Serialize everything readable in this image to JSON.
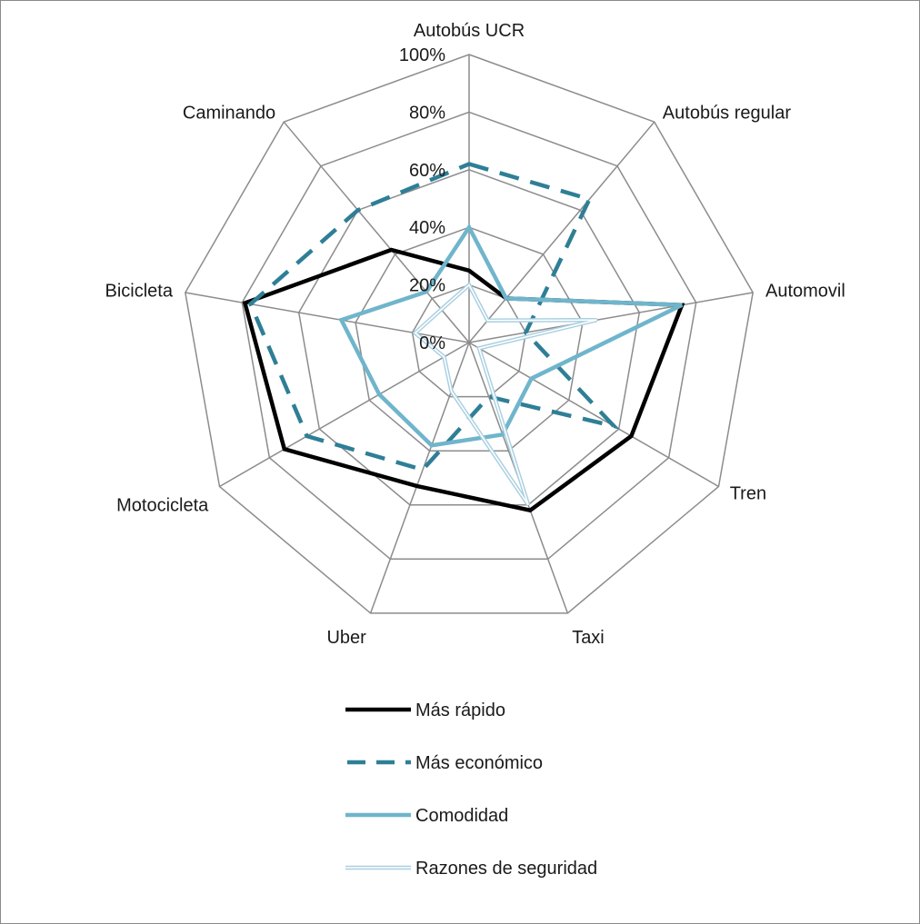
{
  "chart_data": {
    "type": "radar",
    "categories": [
      "Autobús UCR",
      "Autobús regular",
      "Automovil",
      "Tren",
      "Taxi",
      "Uber",
      "Motocicleta",
      "Bicicleta",
      "Caminando"
    ],
    "tick_labels": [
      "0%",
      "20%",
      "40%",
      "60%",
      "80%",
      "100%"
    ],
    "rlim": [
      0,
      100
    ],
    "grid": true,
    "legend_position": "bottom",
    "series": [
      {
        "name": "Más rápido",
        "color": "#000000",
        "style": "solid",
        "values": [
          25,
          20,
          75,
          65,
          62,
          53,
          74,
          79,
          42
        ]
      },
      {
        "name": "Más económico",
        "color": "#2e7f96",
        "style": "dashed",
        "values": [
          62,
          65,
          20,
          58,
          20,
          47,
          65,
          77,
          60
        ]
      },
      {
        "name": "Comodidad",
        "color": "#6fb5cc",
        "style": "solid",
        "values": [
          40,
          20,
          75,
          25,
          34,
          38,
          36,
          45,
          23
        ]
      },
      {
        "name": "Razones de seguridad",
        "color": "#a9cfe0",
        "style": "double",
        "values": [
          20,
          10,
          45,
          4,
          60,
          18,
          10,
          19,
          15
        ]
      }
    ]
  }
}
